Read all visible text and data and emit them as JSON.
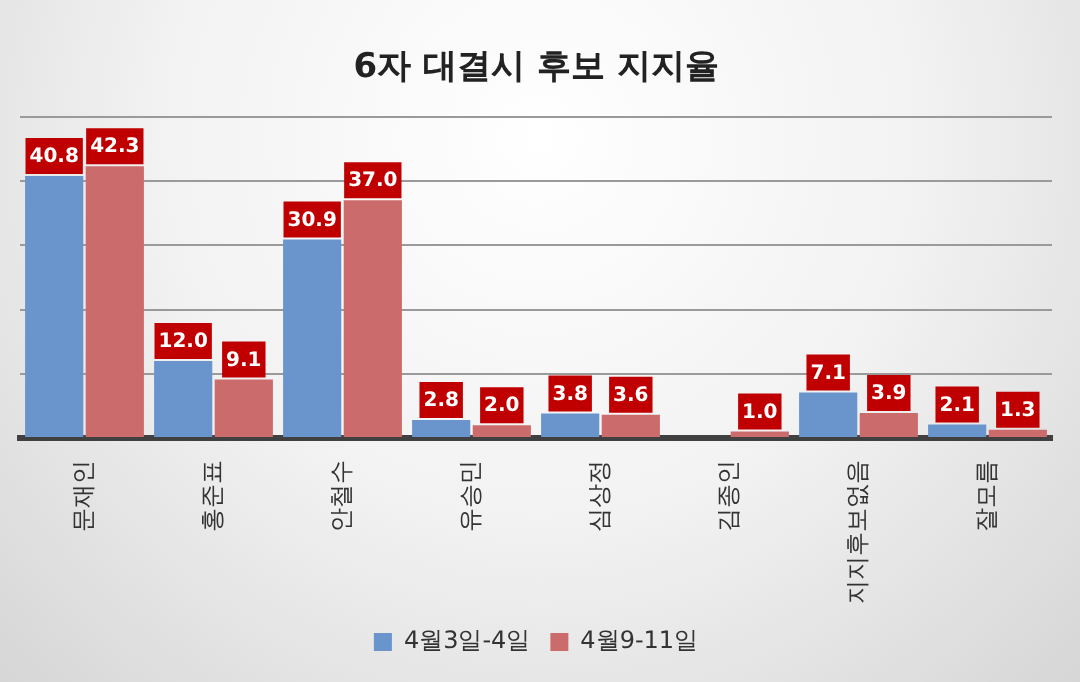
{
  "chart_data": {
    "type": "bar",
    "title": "6자 대결시 후보 지지율",
    "categories": [
      "문재인",
      "홍준표",
      "안철수",
      "유승민",
      "심상정",
      "김종인",
      "지지후보없음",
      "잘모름"
    ],
    "series": [
      {
        "name": "4월3일-4일",
        "color": "#6a95cc",
        "values": [
          40.8,
          12.0,
          30.9,
          2.8,
          3.8,
          null,
          7.1,
          2.1
        ],
        "value_labels": [
          "40.8",
          "12.0",
          "30.9",
          "2.8",
          "3.8",
          null,
          "7.1",
          "2.1"
        ]
      },
      {
        "name": "4월9-11일",
        "color": "#cc6b6b",
        "values": [
          42.3,
          9.1,
          37.0,
          2.0,
          3.6,
          1.0,
          3.9,
          1.3
        ],
        "value_labels": [
          "42.3",
          "9.1",
          "37.0",
          "2.0",
          "3.6",
          "1.0",
          "3.9",
          "1.3"
        ]
      }
    ],
    "ylim": [
      0,
      50
    ],
    "yticks": [
      {
        "value": 0,
        "label": null
      },
      {
        "value": 10,
        "label": null
      },
      {
        "value": 20,
        "label": null
      },
      {
        "value": 30,
        "label": null
      },
      {
        "value": 40,
        "label": null
      },
      {
        "value": 50,
        "label": null
      }
    ],
    "tick_labels": "x",
    "grid": "y",
    "legend": "bottom"
  }
}
